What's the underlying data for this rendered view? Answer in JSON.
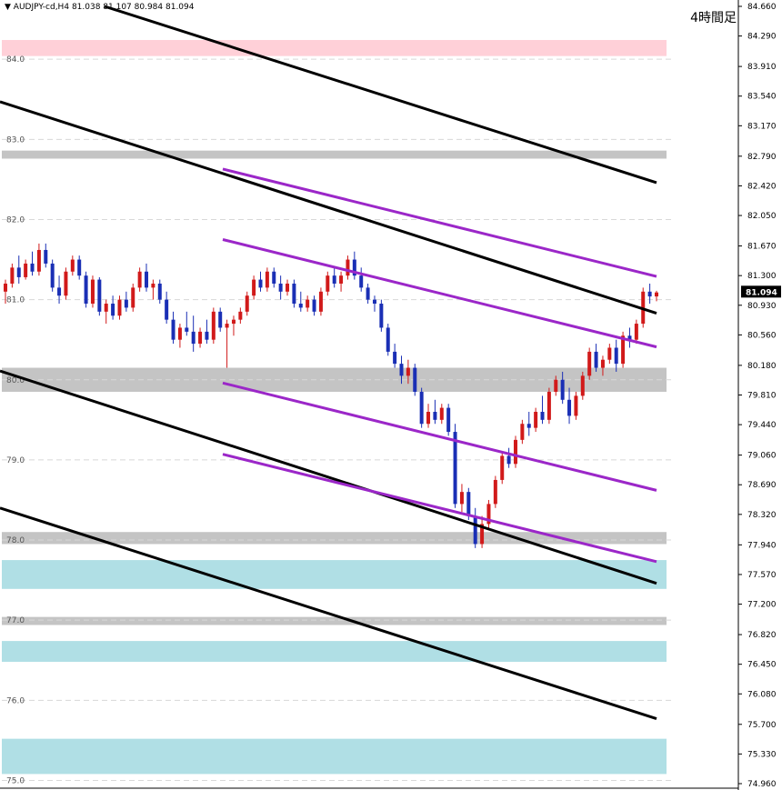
{
  "header": {
    "symbol_label": "AUDJPY-cd,H4",
    "ohlc": "81.038 81.107 80.984 81.094"
  },
  "period_label": "4時間足",
  "colors": {
    "background": "#ffffff",
    "up_candle": "#d11a1a",
    "down_candle": "#1a2fb5",
    "trend_line": "#000000",
    "channel_line": "#9b27c8",
    "support_resistance_gray": "#c4c4c4",
    "zone_pink": "#ffd0d8",
    "zone_cyan": "#b0dfe5",
    "current_price_bg": "#000000"
  },
  "chart_data": {
    "type": "candlestick",
    "symbol": "AUDJPY",
    "timeframe": "H4",
    "y_axis": {
      "min": 74.96,
      "max": 84.66,
      "ticks": [
        84.66,
        84.29,
        83.91,
        83.54,
        83.17,
        82.79,
        82.42,
        82.05,
        81.67,
        81.3,
        80.93,
        80.56,
        80.18,
        79.81,
        79.44,
        79.06,
        78.69,
        78.32,
        77.94,
        77.57,
        77.2,
        76.82,
        76.45,
        76.08,
        75.7,
        75.33,
        74.96
      ],
      "tick_labels": [
        "84.660",
        "84.290",
        "83.910",
        "83.540",
        "83.170",
        "82.790",
        "82.420",
        "82.050",
        "81.670",
        "81.300",
        "80.930",
        "80.560",
        "80.180",
        "79.810",
        "79.440",
        "79.060",
        "78.690",
        "78.320",
        "77.940",
        "77.570",
        "77.200",
        "76.820",
        "76.450",
        "76.080",
        "75.700",
        "75.330",
        "74.960"
      ]
    },
    "level_labels": [
      "84.0",
      "83.0",
      "82.0",
      "81.0",
      "80.0",
      "79.0",
      "78.0",
      "77.0",
      "76.0",
      "75.0"
    ],
    "current_price": 81.094,
    "current_price_label": "81.094",
    "zones": [
      {
        "kind": "resistance",
        "color": "pink",
        "from": 84.04,
        "to": 84.24
      },
      {
        "kind": "level",
        "color": "gray",
        "from": 82.76,
        "to": 82.86
      },
      {
        "kind": "level",
        "color": "gray",
        "from": 79.85,
        "to": 80.15
      },
      {
        "kind": "level",
        "color": "gray",
        "from": 77.95,
        "to": 78.1
      },
      {
        "kind": "support",
        "color": "cyan",
        "from": 77.39,
        "to": 77.75
      },
      {
        "kind": "level",
        "color": "gray",
        "from": 76.94,
        "to": 77.04
      },
      {
        "kind": "support",
        "color": "cyan",
        "from": 76.48,
        "to": 76.74
      },
      {
        "kind": "support",
        "color": "cyan",
        "from": 75.08,
        "to": 75.52
      }
    ],
    "trend_lines": [
      {
        "color": "black",
        "x1": 0.115,
        "y1": 84.66,
        "x2": 0.86,
        "y2": 82.46
      },
      {
        "color": "black",
        "x1": 0.0,
        "y1": 83.47,
        "x2": 0.86,
        "y2": 80.83
      },
      {
        "color": "black",
        "x1": 0.0,
        "y1": 80.11,
        "x2": 0.86,
        "y2": 77.46
      },
      {
        "color": "black",
        "x1": 0.0,
        "y1": 78.4,
        "x2": 0.86,
        "y2": 75.77
      }
    ],
    "channel_lines": [
      {
        "color": "purple",
        "x1": 0.283,
        "y1": 82.63,
        "x2": 0.843,
        "y2": 81.29
      },
      {
        "color": "purple",
        "x1": 0.283,
        "y1": 81.75,
        "x2": 0.843,
        "y2": 80.41
      },
      {
        "color": "purple",
        "x1": 0.283,
        "y1": 79.96,
        "x2": 0.843,
        "y2": 78.62
      },
      {
        "color": "purple",
        "x1": 0.283,
        "y1": 79.07,
        "x2": 0.843,
        "y2": 77.73
      }
    ],
    "candles": [
      [
        81.1,
        81.25,
        80.95,
        81.2
      ],
      [
        81.2,
        81.45,
        81.15,
        81.4
      ],
      [
        81.4,
        81.55,
        81.2,
        81.28
      ],
      [
        81.28,
        81.5,
        81.25,
        81.45
      ],
      [
        81.45,
        81.6,
        81.3,
        81.35
      ],
      [
        81.35,
        81.7,
        81.3,
        81.62
      ],
      [
        81.62,
        81.7,
        81.4,
        81.45
      ],
      [
        81.45,
        81.5,
        81.1,
        81.15
      ],
      [
        81.15,
        81.3,
        80.95,
        81.05
      ],
      [
        81.05,
        81.4,
        81.0,
        81.35
      ],
      [
        81.35,
        81.55,
        81.3,
        81.5
      ],
      [
        81.5,
        81.55,
        81.25,
        81.3
      ],
      [
        81.3,
        81.35,
        80.9,
        80.95
      ],
      [
        80.95,
        81.3,
        80.9,
        81.25
      ],
      [
        81.25,
        81.28,
        80.8,
        80.85
      ],
      [
        80.85,
        81.0,
        80.7,
        80.95
      ],
      [
        80.95,
        81.05,
        80.75,
        80.8
      ],
      [
        80.8,
        81.05,
        80.75,
        81.0
      ],
      [
        81.0,
        81.1,
        80.85,
        80.9
      ],
      [
        80.9,
        81.2,
        80.85,
        81.15
      ],
      [
        81.15,
        81.4,
        81.1,
        81.35
      ],
      [
        81.35,
        81.45,
        81.1,
        81.15
      ],
      [
        81.15,
        81.25,
        81.0,
        81.2
      ],
      [
        81.2,
        81.25,
        80.95,
        81.0
      ],
      [
        81.0,
        81.1,
        80.7,
        80.75
      ],
      [
        80.75,
        80.85,
        80.45,
        80.5
      ],
      [
        80.5,
        80.7,
        80.4,
        80.65
      ],
      [
        80.65,
        80.85,
        80.55,
        80.6
      ],
      [
        80.6,
        80.8,
        80.35,
        80.45
      ],
      [
        80.45,
        80.65,
        80.4,
        80.6
      ],
      [
        80.6,
        80.75,
        80.45,
        80.5
      ],
      [
        80.5,
        80.9,
        80.45,
        80.85
      ],
      [
        80.85,
        80.9,
        80.6,
        80.65
      ],
      [
        80.65,
        80.75,
        80.15,
        80.7
      ],
      [
        80.7,
        80.8,
        80.55,
        80.75
      ],
      [
        80.75,
        80.9,
        80.7,
        80.85
      ],
      [
        80.85,
        81.1,
        80.8,
        81.05
      ],
      [
        81.05,
        81.3,
        81.0,
        81.25
      ],
      [
        81.25,
        81.35,
        81.1,
        81.15
      ],
      [
        81.15,
        81.4,
        81.1,
        81.35
      ],
      [
        81.35,
        81.4,
        81.15,
        81.2
      ],
      [
        81.2,
        81.3,
        81.0,
        81.1
      ],
      [
        81.1,
        81.25,
        81.05,
        81.2
      ],
      [
        81.2,
        81.25,
        80.9,
        80.95
      ],
      [
        80.95,
        81.1,
        80.85,
        80.9
      ],
      [
        80.9,
        81.05,
        80.85,
        81.0
      ],
      [
        81.0,
        81.05,
        80.8,
        80.85
      ],
      [
        80.85,
        81.15,
        80.8,
        81.1
      ],
      [
        81.1,
        81.35,
        81.05,
        81.3
      ],
      [
        81.3,
        81.4,
        81.15,
        81.2
      ],
      [
        81.2,
        81.35,
        81.1,
        81.3
      ],
      [
        81.3,
        81.55,
        81.25,
        81.5
      ],
      [
        81.5,
        81.6,
        81.25,
        81.3
      ],
      [
        81.3,
        81.4,
        81.1,
        81.15
      ],
      [
        81.15,
        81.2,
        80.95,
        81.0
      ],
      [
        81.0,
        81.05,
        80.85,
        80.95
      ],
      [
        80.95,
        81.0,
        80.6,
        80.65
      ],
      [
        80.65,
        80.7,
        80.3,
        80.35
      ],
      [
        80.35,
        80.45,
        80.15,
        80.2
      ],
      [
        80.2,
        80.3,
        79.95,
        80.05
      ],
      [
        80.05,
        80.25,
        79.95,
        80.15
      ],
      [
        80.15,
        80.2,
        79.8,
        79.85
      ],
      [
        79.85,
        79.9,
        79.4,
        79.45
      ],
      [
        79.45,
        79.7,
        79.4,
        79.6
      ],
      [
        79.6,
        79.75,
        79.45,
        79.5
      ],
      [
        79.5,
        79.7,
        79.45,
        79.65
      ],
      [
        79.65,
        79.7,
        79.3,
        79.35
      ],
      [
        79.35,
        79.45,
        78.4,
        78.45
      ],
      [
        78.45,
        78.7,
        78.35,
        78.6
      ],
      [
        78.6,
        78.65,
        78.25,
        78.3
      ],
      [
        78.3,
        78.4,
        77.9,
        77.95
      ],
      [
        77.95,
        78.3,
        77.9,
        78.2
      ],
      [
        78.2,
        78.5,
        78.15,
        78.45
      ],
      [
        78.45,
        78.8,
        78.4,
        78.75
      ],
      [
        78.75,
        79.1,
        78.7,
        79.05
      ],
      [
        79.05,
        79.15,
        78.9,
        78.95
      ],
      [
        78.95,
        79.3,
        78.9,
        79.25
      ],
      [
        79.25,
        79.5,
        79.2,
        79.45
      ],
      [
        79.45,
        79.6,
        79.3,
        79.4
      ],
      [
        79.4,
        79.65,
        79.35,
        79.6
      ],
      [
        79.6,
        79.8,
        79.45,
        79.5
      ],
      [
        79.5,
        79.9,
        79.45,
        79.85
      ],
      [
        79.85,
        80.05,
        79.8,
        80.0
      ],
      [
        80.0,
        80.1,
        79.7,
        79.75
      ],
      [
        79.75,
        79.9,
        79.45,
        79.55
      ],
      [
        79.55,
        79.85,
        79.5,
        79.8
      ],
      [
        79.8,
        80.1,
        79.75,
        80.05
      ],
      [
        80.05,
        80.4,
        80.0,
        80.35
      ],
      [
        80.35,
        80.45,
        80.1,
        80.15
      ],
      [
        80.15,
        80.3,
        80.05,
        80.25
      ],
      [
        80.25,
        80.45,
        80.2,
        80.4
      ],
      [
        80.4,
        80.5,
        80.1,
        80.2
      ],
      [
        80.2,
        80.6,
        80.15,
        80.55
      ],
      [
        80.55,
        80.65,
        80.4,
        80.5
      ],
      [
        80.5,
        80.75,
        80.45,
        80.7
      ],
      [
        80.7,
        81.15,
        80.65,
        81.1
      ],
      [
        81.1,
        81.2,
        80.95,
        81.04
      ],
      [
        81.04,
        81.11,
        80.98,
        81.09
      ]
    ],
    "candle_x_range": [
      0.006,
      0.722
    ]
  }
}
